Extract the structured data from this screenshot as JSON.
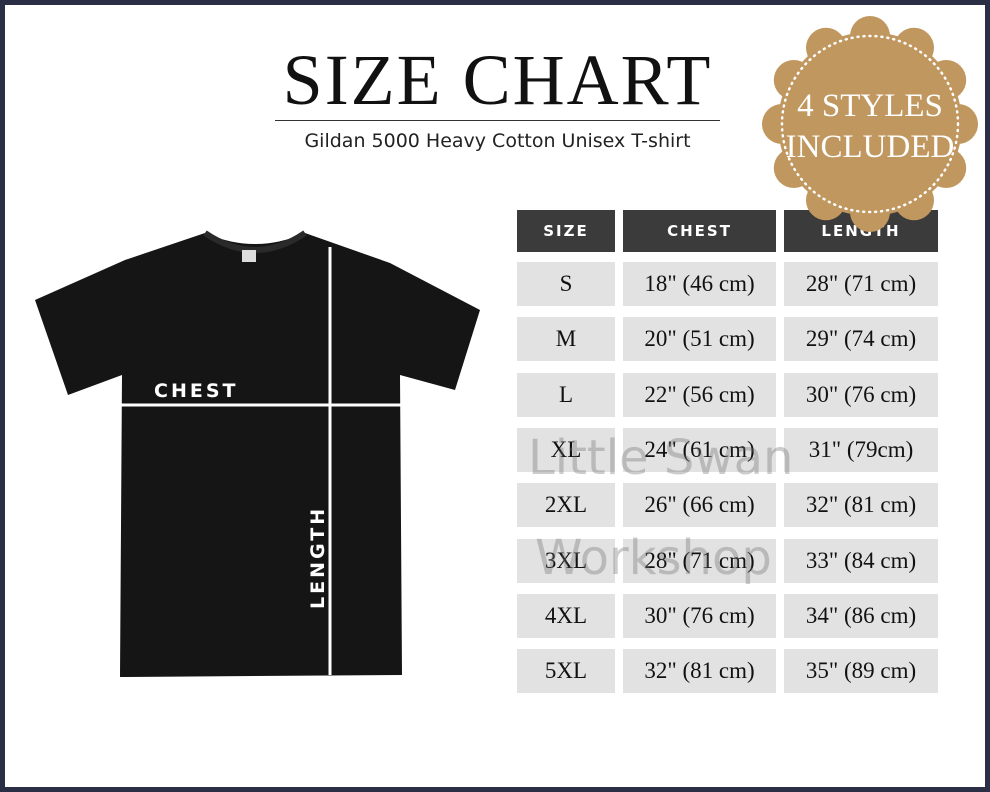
{
  "title": "SIZE CHART",
  "subtitle": "Gildan 5000 Heavy Cotton Unisex T-shirt",
  "badge": {
    "line1": "4 STYLES",
    "line2": "INCLUDED",
    "color": "#c0975f"
  },
  "shirt_labels": {
    "chest": "CHEST",
    "length": "LENGTH"
  },
  "watermark": {
    "line1": "Little Swan",
    "line2": "Workshop"
  },
  "table": {
    "headers": [
      "SIZE",
      "CHEST",
      "LENGTH"
    ],
    "rows": [
      [
        "S",
        "18\" (46 cm)",
        "28\" (71 cm)"
      ],
      [
        "M",
        "20\" (51 cm)",
        "29\" (74 cm)"
      ],
      [
        "L",
        "22\" (56 cm)",
        "30\" (76 cm)"
      ],
      [
        "XL",
        "24\" (61 cm)",
        "31\" (79cm)"
      ],
      [
        "2XL",
        "26\" (66 cm)",
        "32\" (81 cm)"
      ],
      [
        "3XL",
        "28\" (71 cm)",
        "33\" (84 cm)"
      ],
      [
        "4XL",
        "30\" (76 cm)",
        "34\" (86 cm)"
      ],
      [
        "5XL",
        "32\" (81 cm)",
        "35\" (89 cm)"
      ]
    ]
  },
  "colors": {
    "border": "#2b2f45",
    "header_bg": "#3b3b3b",
    "cell_bg": "#e2e2e2"
  }
}
